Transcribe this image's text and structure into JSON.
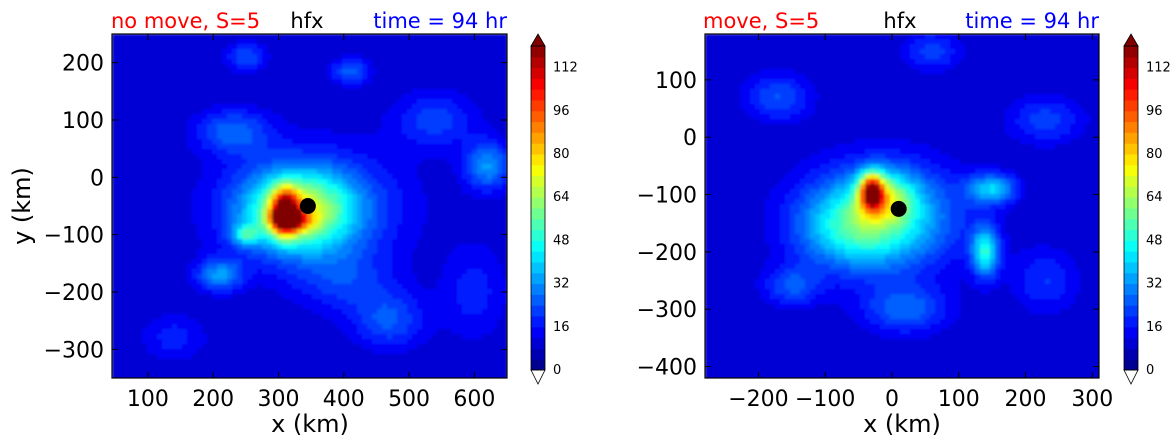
{
  "chart_data": [
    {
      "type": "heatmap",
      "title_left": "no move, S=5",
      "title_center": "hfx",
      "title_right": "time = 94 hr",
      "title_left_color": "#ff0000",
      "title_center_color": "#000000",
      "title_right_color": "#0000ff",
      "xlabel": "x (km)",
      "ylabel": "y (km)",
      "xlim": [
        45,
        650
      ],
      "ylim": [
        -350,
        250
      ],
      "xticks": [
        100,
        200,
        300,
        400,
        500,
        600
      ],
      "yticks": [
        200,
        100,
        0,
        -100,
        -200,
        -300
      ],
      "storm_center": [
        345,
        -50
      ],
      "blobs": [
        {
          "x": 330,
          "y": -60,
          "sx": 55,
          "sy": 45,
          "v": 48
        },
        {
          "x": 350,
          "y": -50,
          "sx": 95,
          "sy": 70,
          "v": 22
        },
        {
          "x": 310,
          "y": -60,
          "sx": 14,
          "sy": 26,
          "v": 80
        },
        {
          "x": 318,
          "y": -75,
          "sx": 20,
          "sy": 12,
          "v": 50
        },
        {
          "x": 230,
          "y": 80,
          "sx": 40,
          "sy": 28,
          "v": 18
        },
        {
          "x": 250,
          "y": 210,
          "sx": 22,
          "sy": 18,
          "v": 16
        },
        {
          "x": 410,
          "y": 185,
          "sx": 22,
          "sy": 16,
          "v": 18
        },
        {
          "x": 540,
          "y": 100,
          "sx": 45,
          "sy": 35,
          "v": 14
        },
        {
          "x": 620,
          "y": 20,
          "sx": 25,
          "sy": 30,
          "v": 24
        },
        {
          "x": 210,
          "y": -170,
          "sx": 25,
          "sy": 20,
          "v": 24
        },
        {
          "x": 250,
          "y": -100,
          "sx": 15,
          "sy": 12,
          "v": 26
        },
        {
          "x": 470,
          "y": -250,
          "sx": 40,
          "sy": 35,
          "v": 16
        },
        {
          "x": 400,
          "y": -180,
          "sx": 55,
          "sy": 40,
          "v": 12
        },
        {
          "x": 140,
          "y": -280,
          "sx": 35,
          "sy": 30,
          "v": 10
        },
        {
          "x": 600,
          "y": -200,
          "sx": 35,
          "sy": 60,
          "v": 10
        }
      ],
      "background_value": 8
    },
    {
      "type": "heatmap",
      "title_left": "move, S=5",
      "title_center": "hfx",
      "title_right": "time = 94 hr",
      "title_left_color": "#ff0000",
      "title_center_color": "#000000",
      "title_right_color": "#0000ff",
      "xlabel": "x (km)",
      "ylabel": "",
      "xlim": [
        -280,
        310
      ],
      "ylim": [
        -420,
        180
      ],
      "xticks": [
        -200,
        -100,
        0,
        100,
        200,
        300
      ],
      "yticks": [
        100,
        0,
        -100,
        -200,
        -300,
        -400
      ],
      "storm_center": [
        10,
        -125
      ],
      "blobs": [
        {
          "x": -15,
          "y": -140,
          "sx": 80,
          "sy": 65,
          "v": 36
        },
        {
          "x": -60,
          "y": -160,
          "sx": 55,
          "sy": 45,
          "v": 20
        },
        {
          "x": -30,
          "y": -95,
          "sx": 12,
          "sy": 22,
          "v": 75
        },
        {
          "x": -10,
          "y": -105,
          "sx": 30,
          "sy": 30,
          "v": 30
        },
        {
          "x": 140,
          "y": -200,
          "sx": 14,
          "sy": 30,
          "v": 38
        },
        {
          "x": 150,
          "y": -90,
          "sx": 25,
          "sy": 18,
          "v": 30
        },
        {
          "x": -170,
          "y": 70,
          "sx": 35,
          "sy": 30,
          "v": 16
        },
        {
          "x": 60,
          "y": 150,
          "sx": 30,
          "sy": 25,
          "v": 14
        },
        {
          "x": 230,
          "y": 30,
          "sx": 40,
          "sy": 30,
          "v": 14
        },
        {
          "x": 20,
          "y": -300,
          "sx": 45,
          "sy": 30,
          "v": 18
        },
        {
          "x": -150,
          "y": -260,
          "sx": 30,
          "sy": 25,
          "v": 16
        },
        {
          "x": 230,
          "y": -250,
          "sx": 35,
          "sy": 40,
          "v": 12
        }
      ],
      "background_value": 8
    }
  ],
  "colorbar": {
    "ticks": [
      0,
      16,
      32,
      48,
      64,
      80,
      96,
      112
    ],
    "min": 0,
    "max": 120,
    "levels": 30
  }
}
